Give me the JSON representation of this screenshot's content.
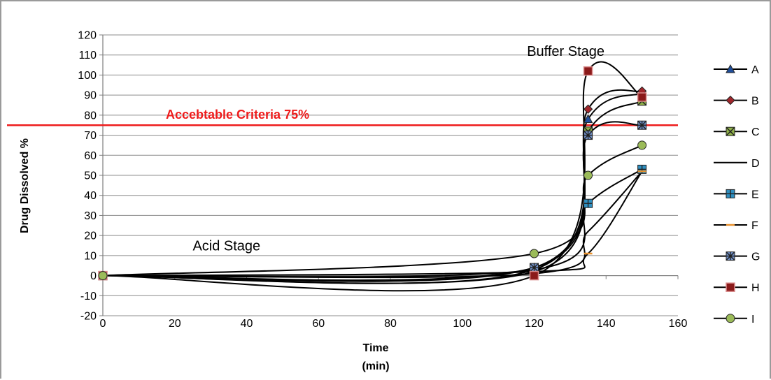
{
  "chart_data": {
    "type": "line",
    "xlabel_lines": [
      "Time",
      "(min)"
    ],
    "ylabel": "Drug Dissolved %",
    "xlim": [
      0,
      160
    ],
    "ylim": [
      -20,
      120
    ],
    "x_ticks": [
      0,
      20,
      40,
      60,
      80,
      100,
      120,
      140,
      160
    ],
    "y_ticks": [
      -20,
      -10,
      0,
      10,
      20,
      30,
      40,
      50,
      60,
      70,
      80,
      90,
      100,
      110,
      120
    ],
    "grid": "horizontal",
    "legend_position": "right",
    "reference_line": {
      "y": 75,
      "label": "Accebtable Criteria   75%",
      "color": "#ee1c1c"
    },
    "annotations": [
      {
        "text": "Buffer Stage",
        "x": 118,
        "y": 112
      },
      {
        "text": "Acid Stage",
        "x": 25,
        "y": 15
      }
    ],
    "x": [
      0,
      120,
      135,
      150
    ],
    "series": [
      {
        "name": "A",
        "marker": "triangle",
        "fill": "#1f4e9b",
        "values": [
          0,
          4,
          78,
          91
        ]
      },
      {
        "name": "B",
        "marker": "diamond",
        "fill": "#a0262b",
        "values": [
          0,
          3,
          83,
          92
        ]
      },
      {
        "name": "C",
        "marker": "x-square",
        "fill": "#8fb049",
        "values": [
          0,
          2,
          72,
          87
        ]
      },
      {
        "name": "D",
        "marker": "none",
        "fill": "#000000",
        "values": [
          0,
          1,
          22,
          52
        ]
      },
      {
        "name": "E",
        "marker": "plus-square",
        "fill": "#2f8fc0",
        "values": [
          0,
          3,
          36,
          53
        ]
      },
      {
        "name": "F",
        "marker": "dash",
        "fill": "#e8902b",
        "values": [
          0,
          2,
          11,
          52
        ]
      },
      {
        "name": "G",
        "marker": "star-square",
        "fill": "#7090c8",
        "values": [
          0,
          4,
          70,
          75
        ]
      },
      {
        "name": "H",
        "marker": "square",
        "fill": "#8b1a1a",
        "values": [
          0,
          0,
          102,
          89
        ]
      },
      {
        "name": "I",
        "marker": "circle",
        "fill": "#9bbb59",
        "values": [
          0,
          11,
          50,
          65
        ]
      }
    ]
  }
}
